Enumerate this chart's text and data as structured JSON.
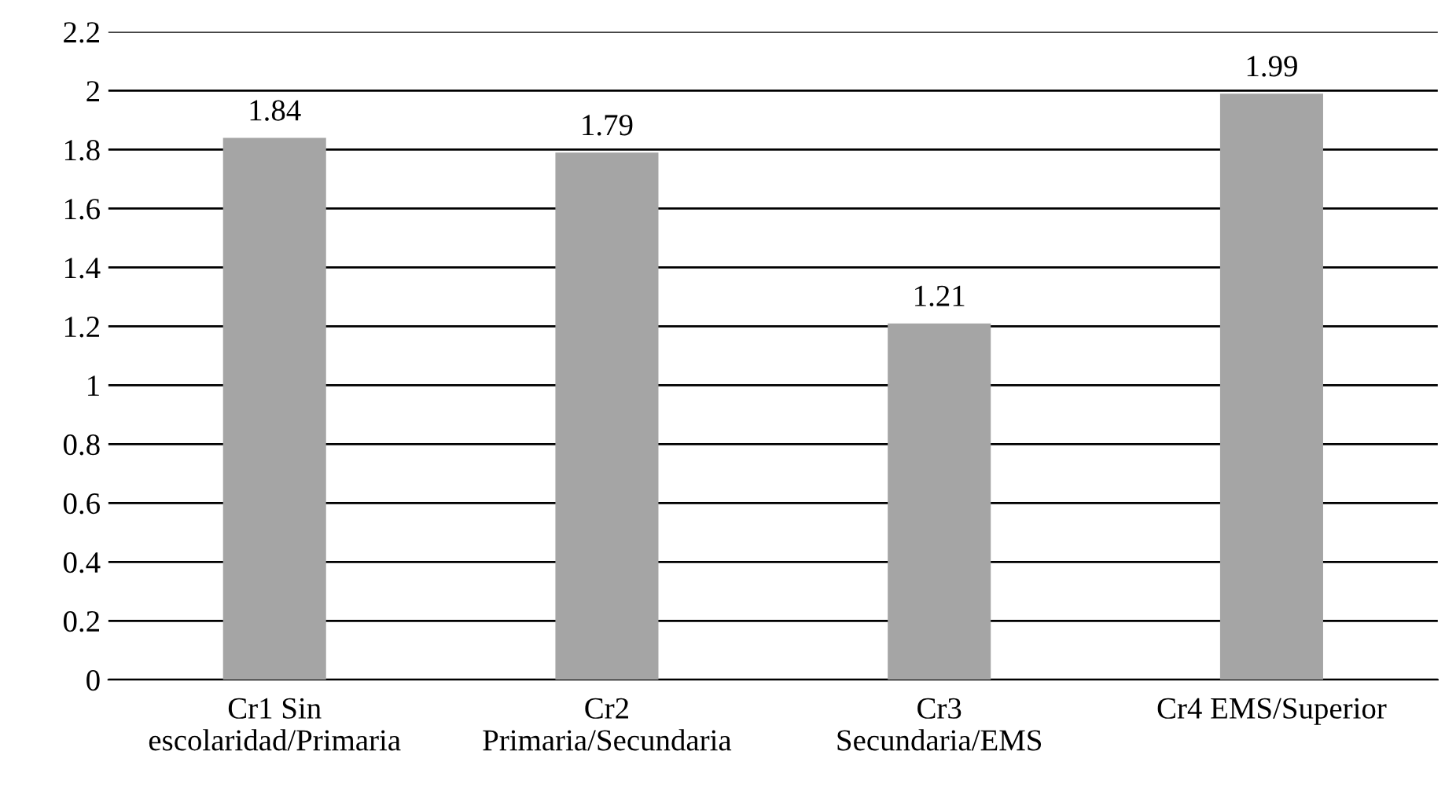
{
  "chart_data": {
    "type": "bar",
    "categories": [
      "Cr1 Sin\nescolaridad/Primaria",
      "Cr2\nPrimaria/Secundaria",
      "Cr3\nSecundaria/EMS",
      "Cr4 EMS/Superior"
    ],
    "values": [
      1.84,
      1.79,
      1.21,
      1.99
    ],
    "color": "#a5a5a5",
    "ylim": [
      0,
      2.2
    ],
    "yticks": [
      0,
      {
        "value": 0.2,
        "label": "0.2"
      },
      {
        "value": 0.4,
        "label": "0.4"
      },
      {
        "value": 0.6,
        "label": "0.6"
      },
      {
        "value": 0.8,
        "label": "0.8"
      },
      1,
      {
        "value": 1.2,
        "label": "1.2"
      },
      {
        "value": 1.4,
        "label": "1.4"
      },
      {
        "value": 1.6,
        "label": "1.6"
      },
      {
        "value": 1.8,
        "label": "1.8"
      },
      2,
      {
        "value": 2.2,
        "label": "2.2"
      }
    ],
    "grid": "y",
    "data_labels": true
  }
}
